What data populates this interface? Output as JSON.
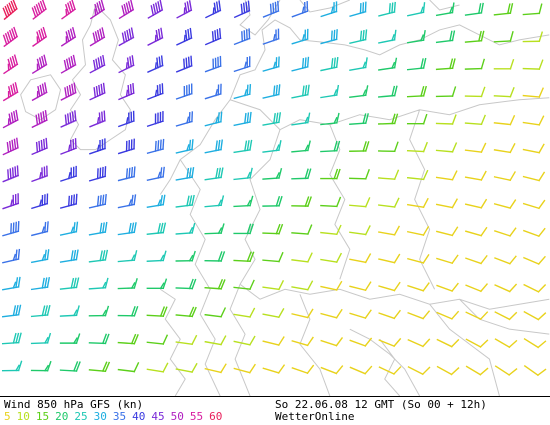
{
  "footer": {
    "title": "Wind 850 hPa GFS (kn)",
    "datetime": "So 22.06.08 12 GMT (So 00 + 12h)",
    "brand": "WetterOnline"
  },
  "legend": {
    "speeds": [
      {
        "label": "5",
        "color": "#e8d21c"
      },
      {
        "label": "10",
        "color": "#b8e020"
      },
      {
        "label": "15",
        "color": "#5ccf1a"
      },
      {
        "label": "20",
        "color": "#1fc96a"
      },
      {
        "label": "25",
        "color": "#1ec8b4"
      },
      {
        "label": "30",
        "color": "#1eaee0"
      },
      {
        "label": "35",
        "color": "#3a72e8"
      },
      {
        "label": "40",
        "color": "#3a3ae0"
      },
      {
        "label": "45",
        "color": "#7a2ad8"
      },
      {
        "label": "50",
        "color": "#b020c0"
      },
      {
        "label": "55",
        "color": "#d81ea0"
      },
      {
        "label": "60",
        "color": "#e81e5a"
      }
    ]
  },
  "coast_color": "#c8c8c8"
}
